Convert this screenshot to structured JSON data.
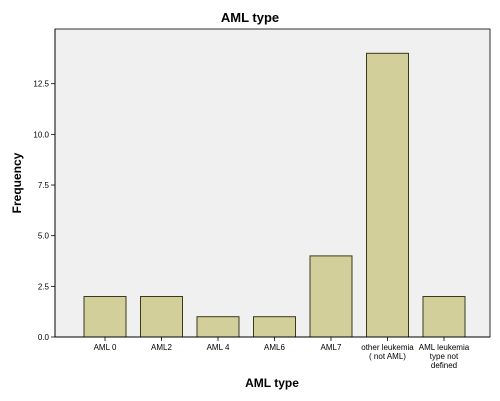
{
  "chart_data": {
    "type": "bar",
    "title": "AML type",
    "xlabel": "AML type",
    "ylabel": "Frequency",
    "categories": [
      "AML 0",
      "AML2",
      "AML 4",
      "AML6",
      "AML7",
      "other leukemia ( not AML)",
      "AML leukemia type not defined"
    ],
    "category_lines": [
      [
        "AML 0"
      ],
      [
        "AML2"
      ],
      [
        "AML 4"
      ],
      [
        "AML6"
      ],
      [
        "AML7"
      ],
      [
        "other leukemia",
        "( not AML)"
      ],
      [
        "AML leukemia",
        "type not",
        "defined"
      ]
    ],
    "values": [
      2,
      2,
      1,
      1,
      4,
      14,
      2
    ],
    "yticks": [
      "0.0",
      "2.5",
      "5.0",
      "7.5",
      "10.0",
      "12.5"
    ],
    "ylim": [
      0,
      15.2
    ],
    "grid": false,
    "legend": "none",
    "colors": {
      "bar_fill": "#d3cf9a",
      "bar_stroke": "#3a3a1a",
      "plot_background": "#f0f0f0",
      "axis": "#000000"
    }
  }
}
